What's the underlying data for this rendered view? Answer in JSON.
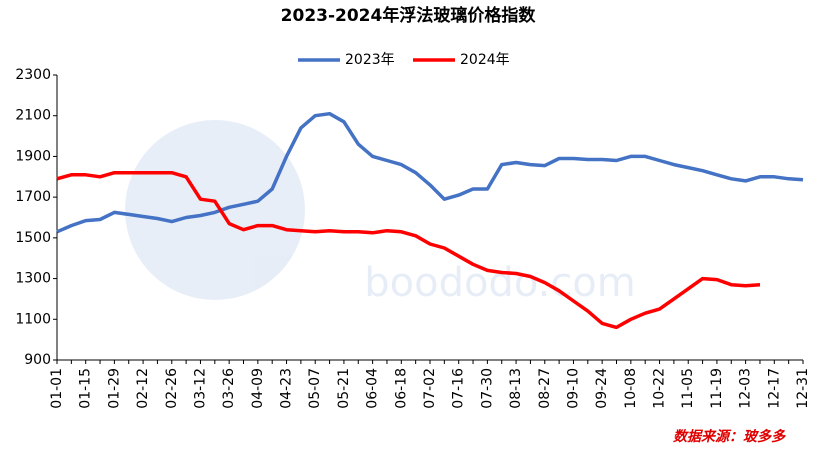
{
  "chart_data": {
    "type": "line",
    "title": "2023-2024年浮法玻璃价格指数",
    "source": "数据来源：玻多多",
    "categories": [
      "01-01",
      null,
      "01-15",
      null,
      "01-29",
      null,
      "02-12",
      null,
      "02-26",
      null,
      "03-12",
      null,
      "03-26",
      null,
      "04-09",
      null,
      "04-23",
      null,
      "05-07",
      null,
      "05-21",
      null,
      "06-04",
      null,
      "06-18",
      null,
      "07-02",
      null,
      "07-16",
      null,
      "07-30",
      null,
      "08-13",
      null,
      "08-27",
      null,
      "09-10",
      null,
      "09-24",
      null,
      "10-08",
      null,
      "10-22",
      null,
      "11-05",
      null,
      "11-19",
      null,
      "12-03",
      null,
      "12-17",
      null,
      "12-31"
    ],
    "series": [
      {
        "name": "2023年",
        "color": "#4472c4",
        "values": [
          1530,
          1560,
          1585,
          1590,
          1625,
          1615,
          1605,
          1595,
          1580,
          1600,
          1610,
          1625,
          1650,
          1665,
          1680,
          1740,
          1900,
          2040,
          2100,
          2110,
          2070,
          1960,
          1900,
          1880,
          1860,
          1820,
          1760,
          1690,
          1710,
          1740,
          1740,
          1860,
          1870,
          1860,
          1855,
          1890,
          1890,
          1885,
          1885,
          1880,
          1900,
          1900,
          1880,
          1860,
          1845,
          1830,
          1810,
          1790,
          1780,
          1800,
          1800,
          1790,
          1785
        ]
      },
      {
        "name": "2024年",
        "color": "#ff0000",
        "values": [
          1790,
          1810,
          1810,
          1800,
          1820,
          1820,
          1820,
          1820,
          1820,
          1800,
          1690,
          1680,
          1570,
          1540,
          1560,
          1560,
          1540,
          1535,
          1530,
          1535,
          1530,
          1530,
          1525,
          1535,
          1530,
          1510,
          1470,
          1450,
          1410,
          1370,
          1340,
          1330,
          1325,
          1310,
          1280,
          1240,
          1190,
          1140,
          1080,
          1060,
          1100,
          1130,
          1150,
          1200,
          1250,
          1300,
          1295,
          1270,
          1265,
          1270,
          null,
          null,
          null
        ]
      }
    ],
    "ylim": [
      900,
      2300
    ],
    "yticks": [
      900,
      1100,
      1300,
      1500,
      1700,
      1900,
      2100,
      2300
    ],
    "legend": "top"
  }
}
